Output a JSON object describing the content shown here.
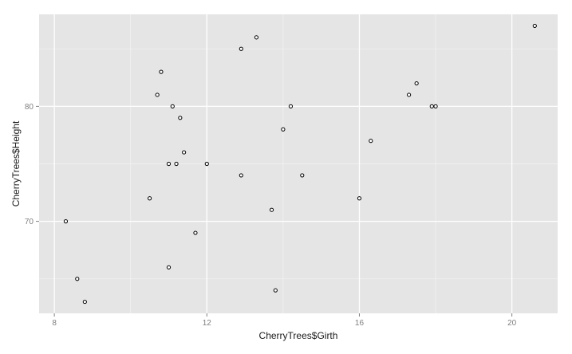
{
  "chart_data": {
    "type": "scatter",
    "title": "",
    "xlabel": "CherryTrees$Girth",
    "ylabel": "CherryTrees$Height",
    "xlim": [
      7.6,
      21.2
    ],
    "ylim": [
      62.0,
      88.0
    ],
    "x_ticks": [
      8,
      12,
      16,
      20
    ],
    "x_tick_labels": [
      "8",
      "12",
      "16",
      "20"
    ],
    "y_ticks": [
      70,
      80
    ],
    "y_tick_labels": [
      "70",
      "80"
    ],
    "grid": true,
    "legend": "none",
    "colors": {
      "panel_background": "#e5e5e5",
      "grid_major": "#ffffff",
      "grid_minor": "#f2f2f2",
      "point_stroke": "#000000",
      "point_fill": "#ffffff"
    },
    "points": [
      {
        "x": 8.3,
        "y": 70
      },
      {
        "x": 8.6,
        "y": 65
      },
      {
        "x": 8.8,
        "y": 63
      },
      {
        "x": 10.5,
        "y": 72
      },
      {
        "x": 10.7,
        "y": 81
      },
      {
        "x": 10.8,
        "y": 83
      },
      {
        "x": 11.0,
        "y": 66
      },
      {
        "x": 11.0,
        "y": 75
      },
      {
        "x": 11.1,
        "y": 80
      },
      {
        "x": 11.2,
        "y": 75
      },
      {
        "x": 11.3,
        "y": 79
      },
      {
        "x": 11.4,
        "y": 76
      },
      {
        "x": 11.7,
        "y": 69
      },
      {
        "x": 12.0,
        "y": 75
      },
      {
        "x": 12.9,
        "y": 74
      },
      {
        "x": 12.9,
        "y": 85
      },
      {
        "x": 13.3,
        "y": 86
      },
      {
        "x": 13.7,
        "y": 71
      },
      {
        "x": 13.8,
        "y": 64
      },
      {
        "x": 14.0,
        "y": 78
      },
      {
        "x": 14.2,
        "y": 80
      },
      {
        "x": 14.5,
        "y": 74
      },
      {
        "x": 16.0,
        "y": 72
      },
      {
        "x": 16.3,
        "y": 77
      },
      {
        "x": 17.3,
        "y": 81
      },
      {
        "x": 17.5,
        "y": 82
      },
      {
        "x": 17.9,
        "y": 80
      },
      {
        "x": 18.0,
        "y": 80
      },
      {
        "x": 20.6,
        "y": 87
      }
    ]
  }
}
